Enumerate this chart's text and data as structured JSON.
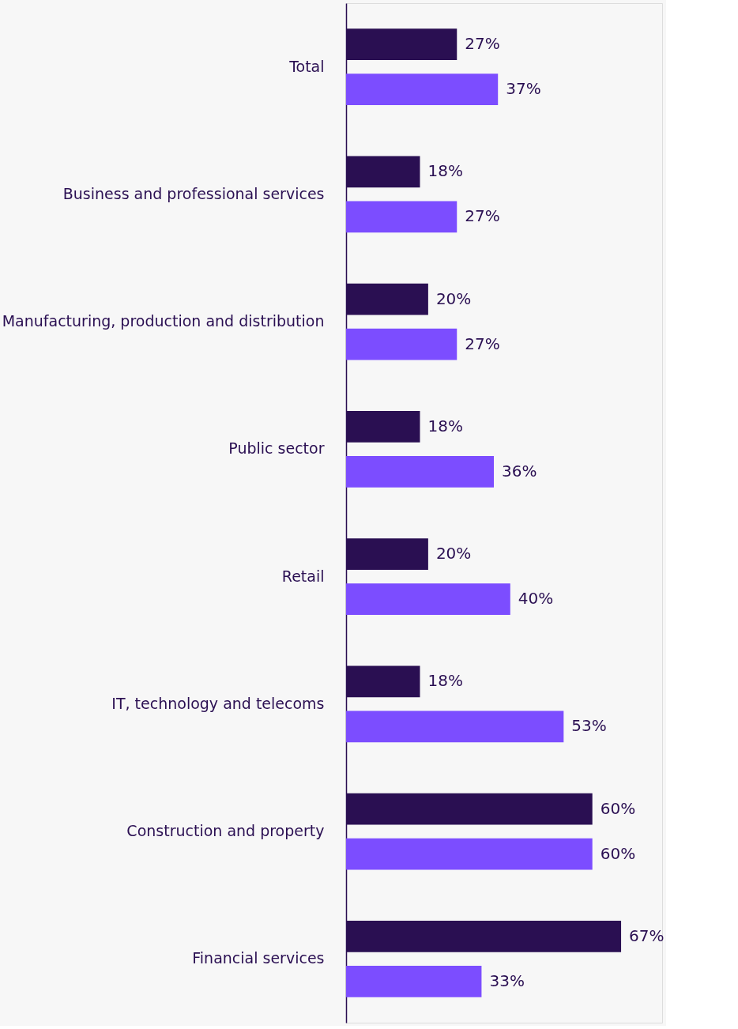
{
  "chart_data": {
    "type": "bar",
    "orientation": "horizontal",
    "categories": [
      "Total",
      "Business and professional services",
      "Manufacturing, production and distribution",
      "Public sector",
      "Retail",
      "IT, technology and telecoms",
      "Construction and property",
      "Financial services"
    ],
    "series": [
      {
        "color": "#2a0f52",
        "values": [
          27,
          18,
          20,
          18,
          20,
          18,
          60,
          67
        ],
        "value_labels": [
          "27%",
          "18%",
          "20%",
          "18%",
          "20%",
          "18%",
          "60%",
          "67%"
        ]
      },
      {
        "color": "#7c4dff",
        "values": [
          37,
          27,
          27,
          36,
          40,
          53,
          60,
          33
        ],
        "value_labels": [
          "37%",
          "27%",
          "27%",
          "36%",
          "40%",
          "53%",
          "60%",
          "33%"
        ]
      }
    ],
    "xlim": [
      0,
      77
    ],
    "grid": false,
    "legend": false,
    "tick_labels": "y"
  }
}
